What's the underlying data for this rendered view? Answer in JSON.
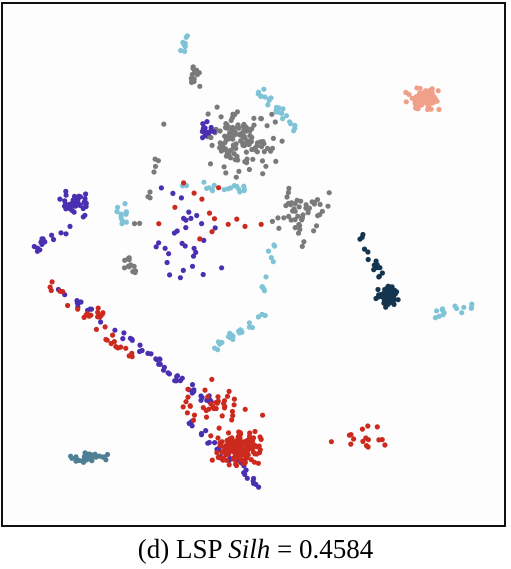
{
  "caption": {
    "label": "(d)",
    "method": "LSP",
    "metric_name": "Silh",
    "equals": "=",
    "metric_value": "0.4584"
  },
  "chart_data": {
    "type": "scatter",
    "title": "",
    "xlabel": "",
    "ylabel": "",
    "xlim": [
      0,
      100
    ],
    "ylim": [
      0,
      100
    ],
    "grid": false,
    "axes_visible": false,
    "legend": "none",
    "background": "#fdfdfd",
    "colors": {
      "gray": "#7a7a7a",
      "light_blue": "#7fc3d6",
      "purple": "#4a2fb0",
      "red": "#cc2a1e",
      "salmon": "#f0a088",
      "navy": "#14354f",
      "steel": "#4f7f94"
    },
    "series": [
      {
        "color_key": "salmon",
        "clusters": [
          {
            "type": "blob",
            "cx": 85.5,
            "cy": 83,
            "rx": 5,
            "ry": 3,
            "n": 70
          }
        ]
      },
      {
        "color_key": "gray",
        "clusters": [
          {
            "type": "blob",
            "cx": 47,
            "cy": 75,
            "rx": 10,
            "ry": 8,
            "n": 130
          },
          {
            "type": "blob",
            "cx": 38,
            "cy": 88,
            "rx": 2.5,
            "ry": 3,
            "n": 14
          },
          {
            "type": "blob",
            "cx": 60,
            "cy": 60,
            "rx": 7,
            "ry": 9,
            "n": 50
          },
          {
            "type": "blob",
            "cx": 24,
            "cy": 50,
            "rx": 2.5,
            "ry": 3,
            "n": 12
          },
          {
            "type": "line",
            "x1": 33,
            "y1": 80,
            "x2": 25,
            "y2": 55,
            "n": 10
          }
        ]
      },
      {
        "color_key": "light_blue",
        "clusters": [
          {
            "type": "line",
            "x1": 35.5,
            "y1": 96,
            "x2": 35.5,
            "y2": 93,
            "n": 8
          },
          {
            "type": "line",
            "x1": 51,
            "y1": 85,
            "x2": 59,
            "y2": 77,
            "n": 24
          },
          {
            "type": "line",
            "x1": 53,
            "y1": 40,
            "x2": 41,
            "y2": 33,
            "n": 22
          },
          {
            "type": "line",
            "x1": 35,
            "y1": 66,
            "x2": 49,
            "y2": 65,
            "n": 18
          },
          {
            "type": "line",
            "x1": 88,
            "y1": 40,
            "x2": 96,
            "y2": 42,
            "n": 14
          },
          {
            "type": "blob",
            "cx": 23,
            "cy": 60,
            "rx": 2,
            "ry": 3,
            "n": 12
          },
          {
            "type": "line",
            "x1": 54,
            "y1": 55,
            "x2": 52,
            "y2": 43,
            "n": 10
          }
        ]
      },
      {
        "color_key": "purple",
        "clusters": [
          {
            "type": "blob",
            "cx": 13,
            "cy": 62,
            "rx": 4,
            "ry": 3,
            "n": 45
          },
          {
            "type": "line",
            "x1": 4,
            "y1": 53,
            "x2": 12,
            "y2": 58,
            "n": 14
          },
          {
            "type": "line",
            "x1": 8,
            "y1": 46,
            "x2": 31,
            "y2": 30,
            "n": 30
          },
          {
            "type": "line",
            "x1": 30,
            "y1": 30,
            "x2": 42,
            "y2": 22,
            "n": 24
          },
          {
            "type": "line",
            "x1": 35,
            "y1": 20,
            "x2": 51,
            "y2": 6,
            "n": 30
          },
          {
            "type": "blob",
            "cx": 40,
            "cy": 77,
            "rx": 2.5,
            "ry": 4,
            "n": 14
          },
          {
            "type": "blob",
            "cx": 35,
            "cy": 55,
            "rx": 10,
            "ry": 14,
            "n": 30
          }
        ]
      },
      {
        "color_key": "red",
        "clusters": [
          {
            "type": "blob",
            "cx": 47,
            "cy": 13,
            "rx": 7,
            "ry": 5,
            "n": 130
          },
          {
            "type": "blob",
            "cx": 43,
            "cy": 22,
            "rx": 11,
            "ry": 6,
            "n": 40
          },
          {
            "type": "line",
            "x1": 8,
            "y1": 46,
            "x2": 25,
            "y2": 31,
            "n": 22
          },
          {
            "type": "blob",
            "cx": 17,
            "cy": 40,
            "rx": 3,
            "ry": 2,
            "n": 12
          },
          {
            "type": "blob",
            "cx": 72,
            "cy": 16,
            "rx": 8,
            "ry": 4,
            "n": 16
          },
          {
            "type": "blob",
            "cx": 40,
            "cy": 60,
            "rx": 14,
            "ry": 10,
            "n": 14
          }
        ]
      },
      {
        "color_key": "navy",
        "clusters": [
          {
            "type": "blob",
            "cx": 78,
            "cy": 44,
            "rx": 3,
            "ry": 3,
            "n": 65
          },
          {
            "type": "line",
            "x1": 72,
            "y1": 56,
            "x2": 77,
            "y2": 47,
            "n": 18
          }
        ]
      },
      {
        "color_key": "steel",
        "clusters": [
          {
            "type": "blob",
            "cx": 15.5,
            "cy": 11.5,
            "rx": 5,
            "ry": 1.5,
            "n": 40
          }
        ]
      }
    ]
  }
}
